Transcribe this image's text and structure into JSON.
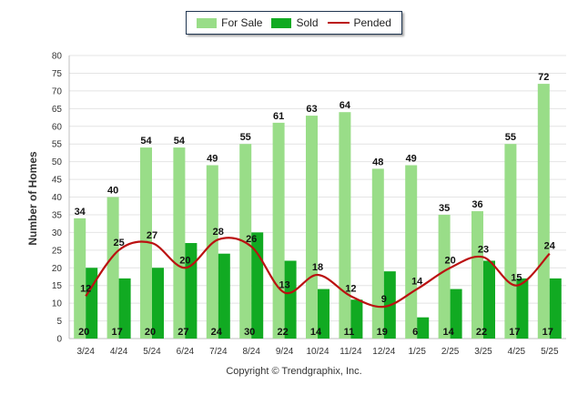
{
  "chart_data": {
    "type": "bar",
    "categories": [
      "3/24",
      "4/24",
      "5/24",
      "6/24",
      "7/24",
      "8/24",
      "9/24",
      "10/24",
      "11/24",
      "12/24",
      "1/25",
      "2/25",
      "3/25",
      "4/25",
      "5/25"
    ],
    "series": [
      {
        "name": "For Sale",
        "type": "bar",
        "color": "#99dd88",
        "values": [
          34,
          40,
          54,
          54,
          49,
          55,
          61,
          63,
          64,
          48,
          49,
          35,
          36,
          55,
          72
        ]
      },
      {
        "name": "Sold",
        "type": "bar",
        "color": "#11aa22",
        "values": [
          20,
          17,
          20,
          27,
          24,
          30,
          22,
          14,
          11,
          19,
          6,
          14,
          22,
          17,
          17
        ]
      },
      {
        "name": "Pended",
        "type": "line",
        "color": "#bb1111",
        "values": [
          12,
          25,
          27,
          20,
          28,
          26,
          13,
          18,
          12,
          9,
          14,
          20,
          23,
          15,
          24
        ]
      }
    ],
    "ylabel": "Number of Homes",
    "xlabel": "",
    "ylim": [
      0,
      80
    ],
    "yticks": [
      0,
      5,
      10,
      15,
      20,
      25,
      30,
      35,
      40,
      45,
      50,
      55,
      60,
      65,
      70,
      75,
      80
    ],
    "grid": true,
    "legend_position": "top-center"
  },
  "copyright": "Copyright © Trendgraphix, Inc."
}
